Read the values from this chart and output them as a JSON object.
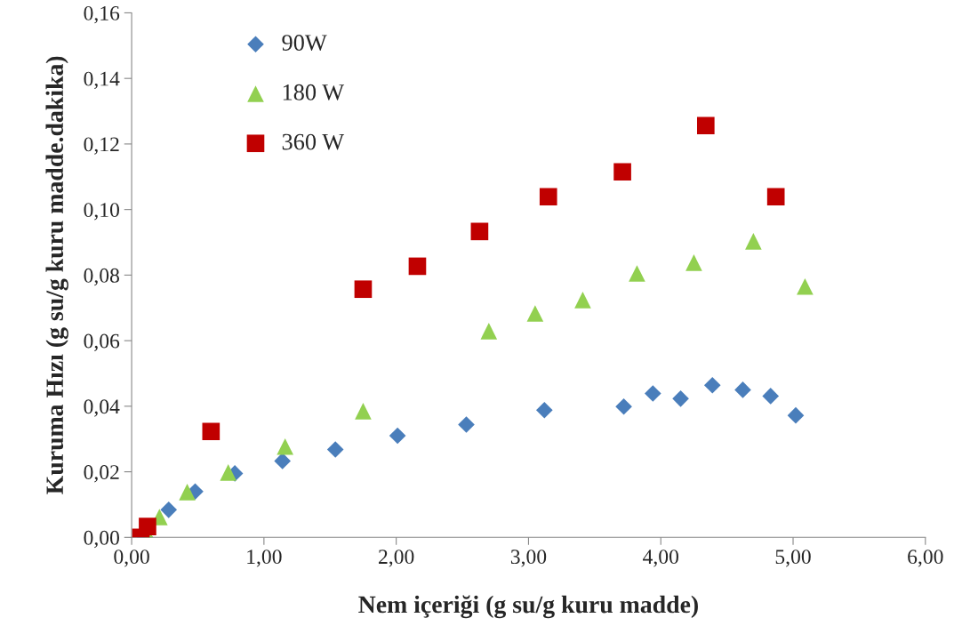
{
  "chart_data": {
    "type": "scatter",
    "xlabel": "Nem içeriği (g su/g kuru madde)",
    "ylabel": "Kuruma Hızı (g su/g kuru madde.dakika)",
    "xlim": [
      0,
      6
    ],
    "ylim": [
      0,
      0.16
    ],
    "xticks": [
      {
        "value": 0,
        "label": "0,00"
      },
      {
        "value": 1,
        "label": "1,00"
      },
      {
        "value": 2,
        "label": "2,00"
      },
      {
        "value": 3,
        "label": "3,00"
      },
      {
        "value": 4,
        "label": "4,00"
      },
      {
        "value": 5,
        "label": "5,00"
      },
      {
        "value": 6,
        "label": "6,00"
      }
    ],
    "yticks": [
      {
        "value": 0,
        "label": "0,00"
      },
      {
        "value": 0.02,
        "label": "0,02"
      },
      {
        "value": 0.04,
        "label": "0,04"
      },
      {
        "value": 0.06,
        "label": "0,06"
      },
      {
        "value": 0.08,
        "label": "0,08"
      },
      {
        "value": 0.1,
        "label": "0,10"
      },
      {
        "value": 0.12,
        "label": "0,12"
      },
      {
        "value": 0.14,
        "label": "0,14"
      },
      {
        "value": 0.16,
        "label": "0,16"
      }
    ],
    "grid": false,
    "legend": "top left",
    "series": [
      {
        "name": "90W",
        "color": "#4a7ebb",
        "marker": "diamond",
        "x": [
          0.1,
          0.17,
          0.28,
          0.48,
          0.78,
          1.14,
          1.54,
          2.01,
          2.53,
          3.12,
          3.72,
          3.94,
          4.15,
          4.39,
          4.62,
          4.83,
          5.02
        ],
        "values": [
          0.0,
          null,
          0.0084,
          0.014,
          0.0195,
          0.0233,
          0.0268,
          0.031,
          0.0344,
          0.0388,
          0.0399,
          0.0439,
          0.0423,
          0.0464,
          0.045,
          0.0431,
          0.0372
        ]
      },
      {
        "name": "180 W",
        "color": "#92d050",
        "marker": "triangle",
        "x": [
          0.13,
          0.21,
          0.42,
          0.73,
          1.16,
          1.75,
          2.7,
          3.05,
          3.41,
          3.82,
          4.25,
          4.7,
          5.09
        ],
        "values": [
          0.0,
          0.0062,
          0.0138,
          0.0198,
          0.0277,
          0.0385,
          0.0629,
          0.0683,
          0.0724,
          0.0805,
          0.0838,
          0.0903,
          0.0765
        ]
      },
      {
        "name": "360 W",
        "color": "#c00000",
        "marker": "square",
        "x": [
          0.07,
          0.12,
          0.6,
          1.75,
          2.16,
          2.63,
          3.15,
          3.71,
          4.34,
          4.87
        ],
        "values": [
          0.0,
          0.0033,
          0.0323,
          0.0757,
          0.0827,
          0.0933,
          0.1039,
          0.1115,
          0.1256,
          0.1039
        ]
      }
    ]
  }
}
